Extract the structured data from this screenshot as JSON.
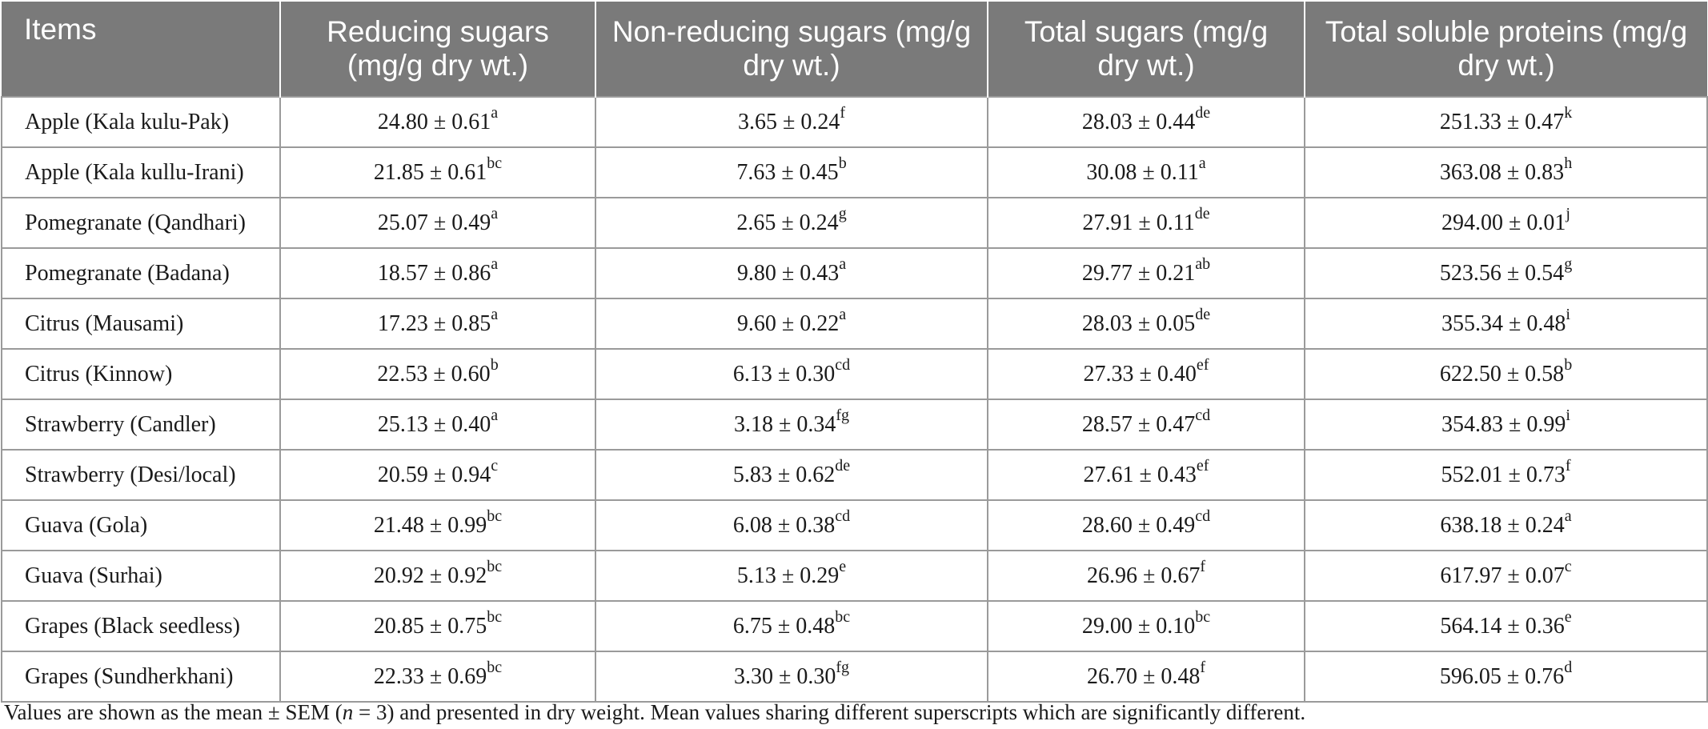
{
  "table": {
    "headers": [
      "Items",
      "Reducing sugars (mg/g dry wt.)",
      "Non-reducing sugars (mg/g dry wt.)",
      "Total sugars (mg/g dry wt.)",
      "Total soluble proteins (mg/g dry wt.)"
    ],
    "rows": [
      {
        "item": "Apple (Kala kulu-Pak)",
        "reducing": "24.80 ± 0.61",
        "reducing_sup": "a",
        "nonreducing": "3.65 ± 0.24",
        "nonreducing_sup": "f",
        "total": "28.03 ± 0.44",
        "total_sup": "de",
        "protein": "251.33 ± 0.47",
        "protein_sup": "k"
      },
      {
        "item": "Apple (Kala kullu-Irani)",
        "reducing": "21.85 ± 0.61",
        "reducing_sup": "bc",
        "nonreducing": "7.63 ± 0.45",
        "nonreducing_sup": "b",
        "total": "30.08 ± 0.11",
        "total_sup": "a",
        "protein": "363.08 ± 0.83",
        "protein_sup": "h"
      },
      {
        "item": "Pomegranate (Qandhari)",
        "reducing": "25.07 ± 0.49",
        "reducing_sup": "a",
        "nonreducing": "2.65 ± 0.24",
        "nonreducing_sup": "g",
        "total": "27.91 ± 0.11",
        "total_sup": "de",
        "protein": "294.00 ± 0.01",
        "protein_sup": "j"
      },
      {
        "item": "Pomegranate (Badana)",
        "reducing": "18.57 ± 0.86",
        "reducing_sup": "a",
        "nonreducing": "9.80 ± 0.43",
        "nonreducing_sup": "a",
        "total": "29.77 ± 0.21",
        "total_sup": "ab",
        "protein": "523.56 ± 0.54",
        "protein_sup": "g"
      },
      {
        "item": "Citrus (Mausami)",
        "reducing": "17.23 ± 0.85",
        "reducing_sup": "a",
        "nonreducing": "9.60 ± 0.22",
        "nonreducing_sup": "a",
        "total": "28.03 ± 0.05",
        "total_sup": "de",
        "protein": "355.34 ± 0.48",
        "protein_sup": "i"
      },
      {
        "item": "Citrus (Kinnow)",
        "reducing": "22.53 ± 0.60",
        "reducing_sup": "b",
        "nonreducing": "6.13 ± 0.30",
        "nonreducing_sup": "cd",
        "total": "27.33 ± 0.40",
        "total_sup": "ef",
        "protein": "622.50 ± 0.58",
        "protein_sup": "b"
      },
      {
        "item": "Strawberry (Candler)",
        "reducing": "25.13 ± 0.40",
        "reducing_sup": "a",
        "nonreducing": "3.18 ± 0.34",
        "nonreducing_sup": "fg",
        "total": "28.57 ± 0.47",
        "total_sup": "cd",
        "protein": "354.83 ± 0.99",
        "protein_sup": "i"
      },
      {
        "item": "Strawberry (Desi/local)",
        "reducing": "20.59 ± 0.94",
        "reducing_sup": "c",
        "nonreducing": "5.83 ± 0.62",
        "nonreducing_sup": "de",
        "total": "27.61 ± 0.43",
        "total_sup": "ef",
        "protein": "552.01 ± 0.73",
        "protein_sup": "f"
      },
      {
        "item": "Guava (Gola)",
        "reducing": "21.48 ± 0.99",
        "reducing_sup": "bc",
        "nonreducing": "6.08 ± 0.38",
        "nonreducing_sup": "cd",
        "total": "28.60 ± 0.49",
        "total_sup": "cd",
        "protein": "638.18 ± 0.24",
        "protein_sup": "a"
      },
      {
        "item": "Guava (Surhai)",
        "reducing": "20.92 ± 0.92",
        "reducing_sup": "bc",
        "nonreducing": "5.13 ± 0.29",
        "nonreducing_sup": "e",
        "total": "26.96 ± 0.67",
        "total_sup": "f",
        "protein": "617.97 ± 0.07",
        "protein_sup": "c"
      },
      {
        "item": "Grapes (Black seedless)",
        "reducing": "20.85 ± 0.75",
        "reducing_sup": "bc",
        "nonreducing": "6.75 ± 0.48",
        "nonreducing_sup": "bc",
        "total": "29.00 ± 0.10",
        "total_sup": "bc",
        "protein": "564.14 ± 0.36",
        "protein_sup": "e"
      },
      {
        "item": "Grapes (Sundherkhani)",
        "reducing": "22.33 ± 0.69",
        "reducing_sup": "bc",
        "nonreducing": "3.30 ± 0.30",
        "nonreducing_sup": "fg",
        "total": "26.70 ± 0.48",
        "total_sup": "f",
        "protein": "596.05 ± 0.76",
        "protein_sup": "d"
      }
    ]
  },
  "footnote": {
    "before": "Values are shown as the mean ± SEM (",
    "n_var": "n",
    "n_rest": " = 3",
    "after": ") and presented in dry weight. Mean values sharing different superscripts which are significantly different."
  },
  "colors": {
    "header_bg": "#7a7a7a",
    "header_text": "#ffffff",
    "border": "#9a9a9a"
  }
}
